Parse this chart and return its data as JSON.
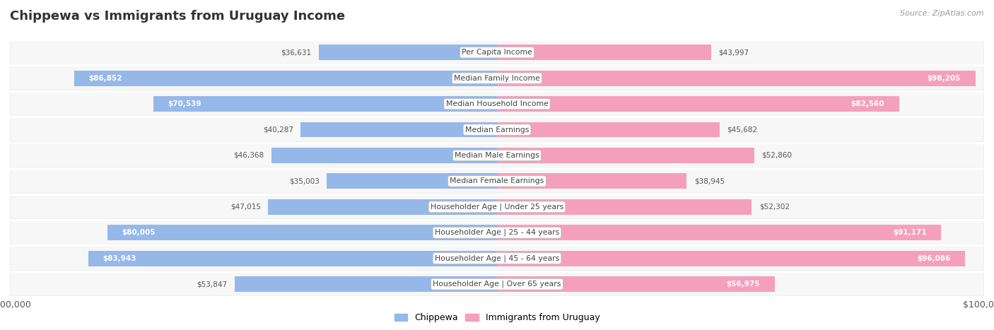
{
  "title": "Chippewa vs Immigrants from Uruguay Income",
  "source": "Source: ZipAtlas.com",
  "categories": [
    "Per Capita Income",
    "Median Family Income",
    "Median Household Income",
    "Median Earnings",
    "Median Male Earnings",
    "Median Female Earnings",
    "Householder Age | Under 25 years",
    "Householder Age | 25 - 44 years",
    "Householder Age | 45 - 64 years",
    "Householder Age | Over 65 years"
  ],
  "chippewa": [
    36631,
    86852,
    70539,
    40287,
    46368,
    35003,
    47015,
    80005,
    83943,
    53847
  ],
  "uruguay": [
    43997,
    98205,
    82560,
    45682,
    52860,
    38945,
    52302,
    91171,
    96086,
    56975
  ],
  "chippewa_labels": [
    "$36,631",
    "$86,852",
    "$70,539",
    "$40,287",
    "$46,368",
    "$35,003",
    "$47,015",
    "$80,005",
    "$83,943",
    "$53,847"
  ],
  "uruguay_labels": [
    "$43,997",
    "$98,205",
    "$82,560",
    "$45,682",
    "$52,860",
    "$38,945",
    "$52,302",
    "$91,171",
    "$96,086",
    "$56,975"
  ],
  "blue_color": "#95b8e8",
  "pink_color": "#f4a0bc",
  "blue_legend_color": "#95b8e8",
  "pink_legend_color": "#f4a0bc",
  "max_val": 100000,
  "title_color": "#333333",
  "label_color": "#333333",
  "source_color": "#999999",
  "row_bg_color": "#f7f7f7",
  "row_border_color": "#e0e0e0",
  "cat_label_bg": "#ffffff",
  "cat_label_border": "#cccccc",
  "inside_label_threshold": 55000,
  "inside_label_color": "#ffffff",
  "outside_label_color": "#555555"
}
